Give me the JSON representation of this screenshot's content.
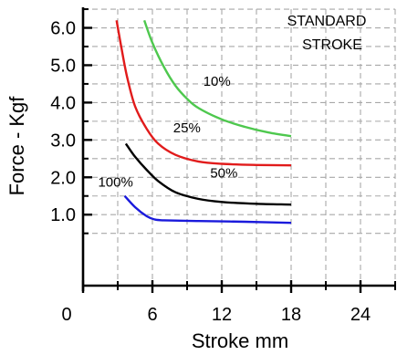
{
  "chart_data": {
    "type": "line",
    "title": "",
    "xlabel": "Stroke mm",
    "ylabel": "Force - Kgf",
    "xlim": [
      0,
      27
    ],
    "ylim": [
      -0.9,
      6.55
    ],
    "x_ticks": [
      0,
      6,
      12,
      18,
      24
    ],
    "x_tick_labels": [
      "0",
      "6",
      "12",
      "18",
      "24"
    ],
    "y_ticks": [
      1.0,
      2.0,
      3.0,
      4.0,
      5.0,
      6.0
    ],
    "y_tick_labels": [
      "1.0",
      "2.0",
      "3.0",
      "4.0",
      "5.0",
      "6.0"
    ],
    "grid": true,
    "note": [
      "STANDARD",
      "STROKE"
    ],
    "series": [
      {
        "name": "10%",
        "color": "#4ec84e",
        "points": [
          [
            5.3,
            6.2
          ],
          [
            6.0,
            5.6
          ],
          [
            7.0,
            4.95
          ],
          [
            8.0,
            4.45
          ],
          [
            9.0,
            4.1
          ],
          [
            10.0,
            3.85
          ],
          [
            12.0,
            3.55
          ],
          [
            14.0,
            3.35
          ],
          [
            16.0,
            3.2
          ],
          [
            18.0,
            3.1
          ]
        ]
      },
      {
        "name": "25%",
        "color": "#e11b1b",
        "points": [
          [
            2.9,
            6.2
          ],
          [
            3.3,
            5.5
          ],
          [
            3.8,
            4.7
          ],
          [
            4.5,
            3.9
          ],
          [
            5.5,
            3.3
          ],
          [
            6.5,
            2.9
          ],
          [
            8.0,
            2.6
          ],
          [
            10.0,
            2.42
          ],
          [
            12.0,
            2.36
          ],
          [
            15.0,
            2.33
          ],
          [
            18.0,
            2.32
          ]
        ]
      },
      {
        "name": "50%",
        "color": "#000000",
        "points": [
          [
            3.7,
            2.9
          ],
          [
            4.5,
            2.55
          ],
          [
            5.5,
            2.2
          ],
          [
            6.5,
            1.9
          ],
          [
            8.0,
            1.6
          ],
          [
            10.0,
            1.42
          ],
          [
            12.0,
            1.34
          ],
          [
            15.0,
            1.29
          ],
          [
            18.0,
            1.27
          ]
        ]
      },
      {
        "name": "100%",
        "color": "#1a1adc",
        "points": [
          [
            3.6,
            1.5
          ],
          [
            4.5,
            1.2
          ],
          [
            5.5,
            0.96
          ],
          [
            6.2,
            0.87
          ],
          [
            7.0,
            0.85
          ],
          [
            10.0,
            0.83
          ],
          [
            14.0,
            0.81
          ],
          [
            18.0,
            0.78
          ]
        ]
      }
    ],
    "annotations": [
      {
        "text": "10%",
        "x": 10.4,
        "y": 4.45
      },
      {
        "text": "25%",
        "x": 7.8,
        "y": 3.2
      },
      {
        "text": "50%",
        "x": 11.0,
        "y": 2.0
      },
      {
        "text": "100%",
        "x": 1.3,
        "y": 1.75
      }
    ]
  }
}
